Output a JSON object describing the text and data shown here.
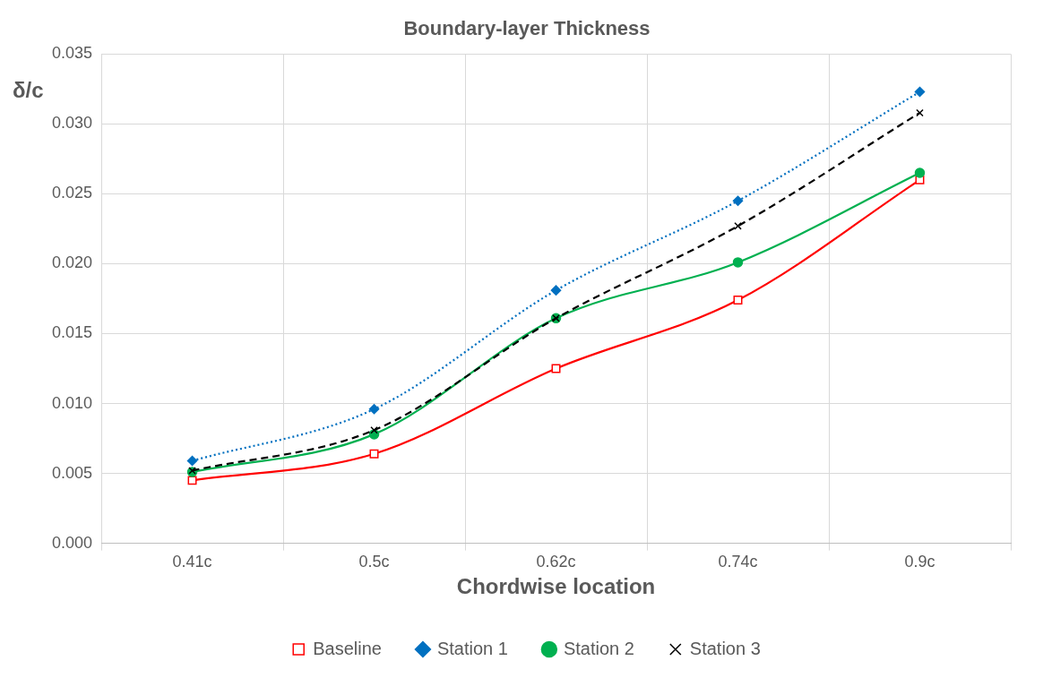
{
  "chart_data": {
    "type": "line",
    "title": "Boundary-layer Thickness",
    "xlabel": "Chordwise location",
    "ylabel": "δ/c",
    "categories": [
      "0.41c",
      "0.5c",
      "0.62c",
      "0.74c",
      "0.9c"
    ],
    "series": [
      {
        "name": "Baseline",
        "color": "#ff0000",
        "marker": "square",
        "line_style": "solid",
        "values": [
          0.0045,
          0.0064,
          0.0125,
          0.0174,
          0.026
        ]
      },
      {
        "name": "Station 1",
        "color": "#0070c0",
        "marker": "diamond",
        "line_style": "dotted",
        "values": [
          0.0059,
          0.0096,
          0.0181,
          0.0245,
          0.0323
        ]
      },
      {
        "name": "Station 2",
        "color": "#00b050",
        "marker": "circle",
        "line_style": "solid",
        "values": [
          0.0051,
          0.0078,
          0.0161,
          0.0201,
          0.0265
        ]
      },
      {
        "name": "Station 3",
        "color": "#000000",
        "marker": "cross",
        "line_style": "dashed",
        "values": [
          0.0052,
          0.0081,
          0.0161,
          0.0227,
          0.0308
        ]
      }
    ],
    "ylim": [
      0,
      0.035
    ],
    "yticks": [
      {
        "value": 0,
        "label": "0.000"
      },
      {
        "value": 0.005,
        "label": "0.005"
      },
      {
        "value": 0.01,
        "label": "0.010"
      },
      {
        "value": 0.015,
        "label": "0.015"
      },
      {
        "value": 0.02,
        "label": "0.020"
      },
      {
        "value": 0.025,
        "label": "0.025"
      },
      {
        "value": 0.03,
        "label": "0.030"
      },
      {
        "value": 0.035,
        "label": "0.035"
      }
    ],
    "grid": true,
    "legend": "bottom"
  }
}
